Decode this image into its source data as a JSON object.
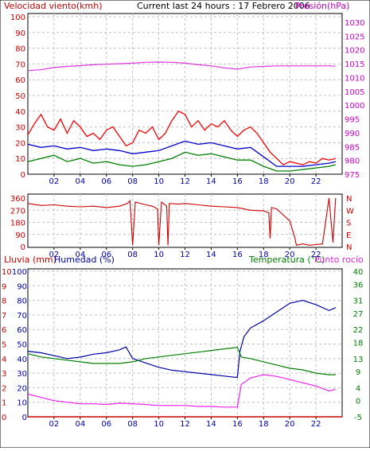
{
  "header": {
    "left_title": "Velocidad viento(kmh)",
    "center_title": "Current last 24 hours : 17 Febrero 2006",
    "right_title": "Presión(hPa)"
  },
  "colors": {
    "wind": "#ff0000",
    "gust": "#ff0000",
    "wind_avg": "#0000cc",
    "wind_low": "#008000",
    "pressure": "#dd33dd",
    "direction": "#cc0000",
    "rain": "#cc0000",
    "humidity": "#0000aa",
    "temperature": "#008000",
    "dewpoint": "#ee22ee",
    "grid": "#c0c0c0"
  },
  "chart_data": [
    {
      "type": "line",
      "name_key": "wind_pressure",
      "x_tick_labels": [
        "02",
        "04",
        "06",
        "08",
        "10",
        "12",
        "14",
        "16",
        "18",
        "20",
        "22"
      ],
      "xlim": [
        0,
        24
      ],
      "left_axis": {
        "label": "Velocidad viento(kmh)",
        "ticks": [
          0,
          10,
          20,
          30,
          40,
          50,
          60,
          70,
          80,
          90,
          100
        ],
        "ylim": [
          0,
          100
        ]
      },
      "right_axis": {
        "label": "Presión(hPa)",
        "ticks": [
          975,
          980,
          985,
          990,
          995,
          1000,
          1005,
          1010,
          1015,
          1020,
          1025,
          1030
        ],
        "ylim": [
          975,
          1032
        ]
      },
      "series": [
        {
          "key": "wind_gust",
          "axis": "left",
          "x": [
            0,
            0.5,
            1,
            1.5,
            2,
            2.5,
            3,
            3.5,
            4,
            4.5,
            5,
            5.5,
            6,
            6.5,
            7,
            7.5,
            8,
            8.5,
            9,
            9.5,
            10,
            10.5,
            11,
            11.5,
            12,
            12.5,
            13,
            13.5,
            14,
            14.5,
            15,
            15.5,
            16,
            16.5,
            17,
            17.5,
            18,
            18.5,
            19,
            19.5,
            20,
            20.5,
            21,
            21.5,
            22,
            22.5,
            23,
            23.5
          ],
          "values": [
            25,
            32,
            38,
            30,
            28,
            35,
            26,
            34,
            30,
            24,
            26,
            22,
            28,
            30,
            24,
            18,
            20,
            28,
            26,
            30,
            22,
            26,
            34,
            40,
            38,
            30,
            34,
            28,
            32,
            30,
            34,
            28,
            24,
            28,
            30,
            26,
            20,
            14,
            10,
            6,
            8,
            7,
            6,
            8,
            7,
            10,
            9,
            10
          ]
        },
        {
          "key": "wind_avg",
          "axis": "left",
          "x": [
            0,
            1,
            2,
            3,
            4,
            5,
            6,
            7,
            8,
            9,
            10,
            11,
            12,
            13,
            14,
            15,
            16,
            17,
            18,
            19,
            20,
            21,
            22,
            23,
            23.5
          ],
          "values": [
            19,
            17,
            18,
            16,
            17,
            15,
            16,
            15,
            13,
            14,
            15,
            18,
            21,
            19,
            20,
            18,
            16,
            17,
            11,
            5,
            5,
            5,
            6,
            7,
            8
          ]
        },
        {
          "key": "wind_low",
          "axis": "left",
          "x": [
            0,
            1,
            2,
            3,
            4,
            5,
            6,
            7,
            8,
            9,
            10,
            11,
            12,
            13,
            14,
            15,
            16,
            17,
            18,
            19,
            20,
            21,
            22,
            23,
            23.5
          ],
          "values": [
            8,
            10,
            12,
            8,
            10,
            7,
            8,
            6,
            5,
            6,
            8,
            10,
            14,
            12,
            13,
            11,
            9,
            9,
            5,
            2,
            2,
            3,
            4,
            5,
            6
          ]
        },
        {
          "key": "pressure",
          "axis": "right",
          "x": [
            0,
            1,
            2,
            3,
            4,
            5,
            6,
            7,
            8,
            9,
            10,
            11,
            12,
            13,
            14,
            15,
            16,
            17,
            18,
            19,
            20,
            21,
            22,
            23,
            23.5
          ],
          "values": [
            1012.5,
            1012.8,
            1013.6,
            1014,
            1014.3,
            1014.6,
            1014.8,
            1015,
            1015.2,
            1015.5,
            1015.6,
            1015.5,
            1015.2,
            1014.6,
            1014.2,
            1013.5,
            1013,
            1013.8,
            1014,
            1014.2,
            1014.2,
            1014.2,
            1014.2,
            1014.2,
            1014.1
          ]
        }
      ]
    },
    {
      "type": "line",
      "name_key": "direction",
      "x_tick_labels": [
        "02",
        "04",
        "06",
        "08",
        "10",
        "12",
        "14",
        "16",
        "18",
        "20",
        "22"
      ],
      "xlim": [
        0,
        24
      ],
      "left_axis": {
        "ticks": [
          0,
          90,
          180,
          270,
          360
        ],
        "ylim": [
          0,
          360
        ]
      },
      "right_axis": {
        "ticks": [
          "N",
          "E",
          "S",
          "W",
          "N"
        ]
      },
      "series": [
        {
          "key": "direction",
          "axis": "left",
          "x": [
            0,
            1,
            2,
            3,
            4,
            5,
            6,
            7,
            7.6,
            7.8,
            8.0,
            8.2,
            9,
            9.5,
            9.9,
            10.0,
            10.2,
            10.6,
            10.7,
            10.8,
            11.5,
            12,
            13,
            14,
            15,
            16,
            17,
            18,
            18.4,
            18.5,
            18.6,
            19,
            20,
            20.4,
            20.5,
            21,
            21.5,
            22,
            22.5,
            23,
            23.3,
            23.5
          ],
          "values": [
            320,
            305,
            310,
            300,
            295,
            300,
            290,
            300,
            320,
            340,
            10,
            330,
            310,
            300,
            280,
            10,
            330,
            300,
            10,
            320,
            315,
            320,
            310,
            300,
            295,
            290,
            270,
            265,
            250,
            60,
            290,
            280,
            190,
            60,
            10,
            20,
            10,
            15,
            20,
            360,
            30,
            360
          ]
        }
      ]
    },
    {
      "type": "line",
      "name_key": "temp_hum",
      "x_tick_labels": [
        "02",
        "04",
        "06",
        "08",
        "10",
        "12",
        "14",
        "16",
        "18",
        "20",
        "22"
      ],
      "xlim": [
        0,
        24
      ],
      "axes_titles": {
        "left1": "Lluvia (mm)",
        "left2": "Humedad (%)",
        "right1": "Temperatura (°C)",
        "right2": "Punto rocío"
      },
      "rain_axis": {
        "ticks": [
          0,
          1,
          2,
          3,
          4,
          5,
          6,
          7,
          8,
          9,
          10
        ],
        "ylim": [
          0,
          10
        ]
      },
      "humidity_axis": {
        "ticks": [
          0,
          10,
          20,
          30,
          40,
          50,
          60,
          70,
          80,
          90,
          100
        ],
        "ylim": [
          0,
          100
        ]
      },
      "temperature_axis": {
        "ticks": [
          -5,
          0,
          4,
          9,
          13,
          18,
          22,
          27,
          31,
          36,
          40
        ],
        "ylim": [
          -5,
          40
        ]
      },
      "series": [
        {
          "key": "rain",
          "axis": "rain",
          "x": [
            0,
            24
          ],
          "values": [
            0,
            0
          ]
        },
        {
          "key": "humidity",
          "axis": "humidity",
          "x": [
            0,
            1,
            2,
            3,
            4,
            5,
            6,
            7,
            7.5,
            8,
            9,
            10,
            11,
            12,
            13,
            14,
            15,
            16,
            16.2,
            16.5,
            17,
            18,
            19,
            20,
            21,
            22,
            23,
            23.5
          ],
          "values": [
            45,
            44,
            42,
            40,
            41,
            43,
            44,
            46,
            48,
            40,
            37,
            34,
            32,
            31,
            30,
            29,
            28,
            27,
            45,
            55,
            61,
            66,
            72,
            78,
            80,
            77,
            73,
            75
          ]
        },
        {
          "key": "temperature",
          "axis": "temperature",
          "x": [
            0,
            1,
            2,
            3,
            4,
            5,
            6,
            7,
            8,
            9,
            10,
            11,
            12,
            13,
            14,
            15,
            16,
            16.3,
            17,
            18,
            19,
            20,
            21,
            22,
            23,
            23.5
          ],
          "values": [
            14.5,
            13.5,
            13,
            12.5,
            12,
            11.5,
            11.5,
            11.5,
            12,
            13,
            13.5,
            14,
            14.5,
            15,
            15.5,
            16,
            16.5,
            13.5,
            13,
            12,
            11,
            10,
            9.5,
            8.5,
            8,
            8
          ]
        },
        {
          "key": "dewpoint",
          "axis": "temperature",
          "x": [
            0,
            1,
            2,
            3,
            4,
            5,
            6,
            7,
            8,
            9,
            10,
            11,
            12,
            13,
            14,
            15,
            16,
            16.3,
            17,
            18,
            19,
            20,
            21,
            22,
            23,
            23.5
          ],
          "values": [
            2,
            1,
            0,
            -0.5,
            -1,
            -1,
            -1.2,
            -0.8,
            -1,
            -1.2,
            -1.5,
            -1.5,
            -1.5,
            -1.8,
            -1.8,
            -2,
            -2,
            5,
            7,
            8,
            7.5,
            6.5,
            5.5,
            4.5,
            3,
            3.5
          ]
        }
      ]
    }
  ]
}
